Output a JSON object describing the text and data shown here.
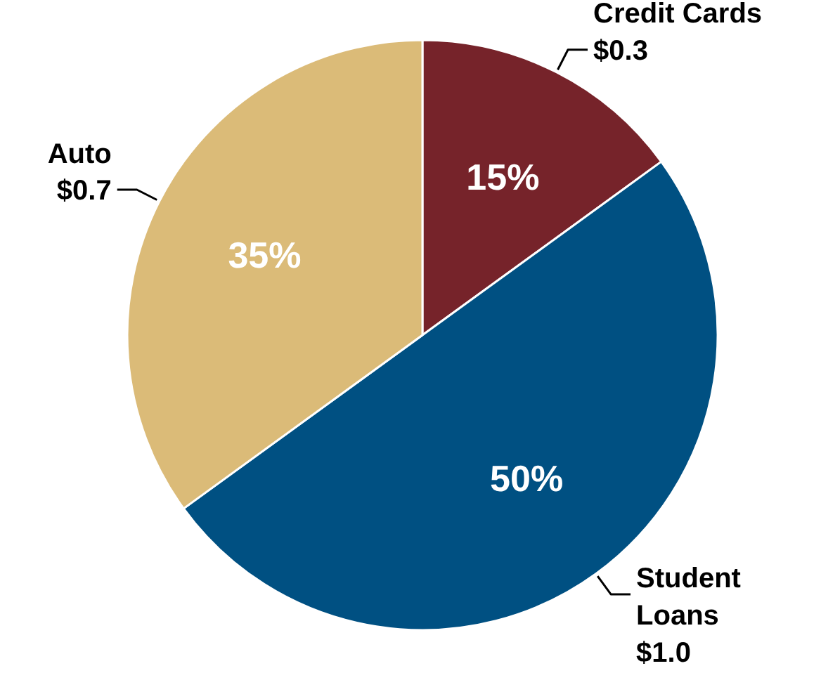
{
  "chart_data": {
    "type": "pie",
    "categories": [
      "Credit Cards",
      "Student Loans",
      "Auto"
    ],
    "values": [
      0.3,
      1.0,
      0.7
    ],
    "value_labels": [
      "$0.3",
      "$1.0",
      "$0.7"
    ],
    "colors": [
      "#76232a",
      "#005082",
      "#dbbb78"
    ],
    "annotations": [
      {
        "text": "15%",
        "x": "Credit Cards"
      },
      {
        "text": "50%",
        "x": "Student Loans"
      },
      {
        "text": "35%",
        "x": "Auto"
      }
    ]
  }
}
